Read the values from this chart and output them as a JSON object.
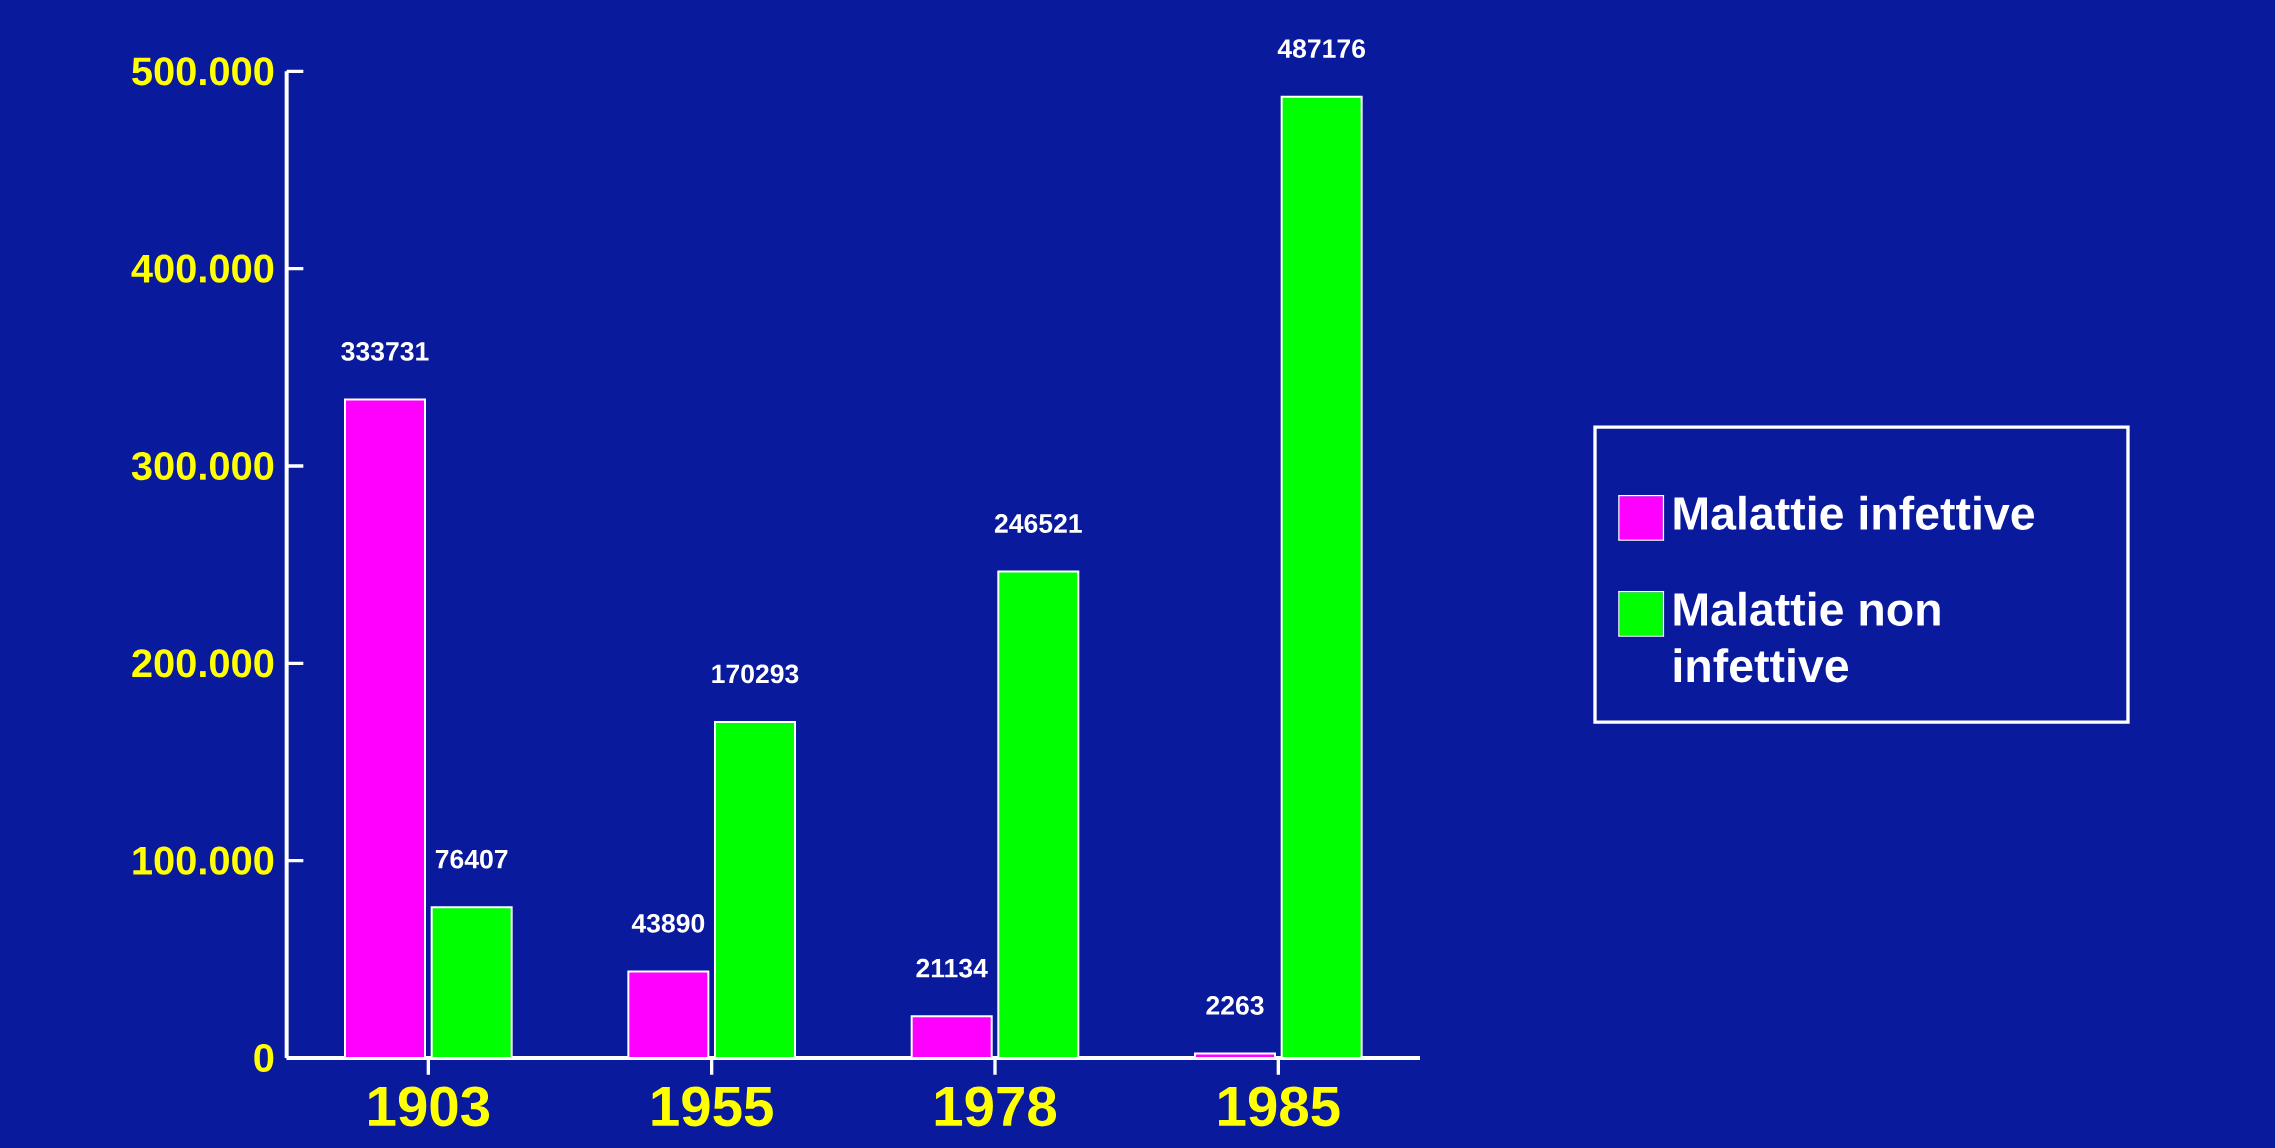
{
  "chart_data": {
    "type": "bar",
    "categories": [
      "1903",
      "1955",
      "1978",
      "1985"
    ],
    "series": [
      {
        "name": "Malattie infettive",
        "color": "#ff00ff",
        "values": [
          333731,
          43890,
          21134,
          2263
        ]
      },
      {
        "name": "Malattie non infettive",
        "color": "#00ff00",
        "values": [
          76407,
          170293,
          246521,
          487176
        ]
      }
    ],
    "ylim": [
      0,
      500000
    ],
    "yticks": [
      {
        "value": 0,
        "label": "0"
      },
      {
        "value": 100000,
        "label": "100.000"
      },
      {
        "value": 200000,
        "label": "200.000"
      },
      {
        "value": 300000,
        "label": "300.000"
      },
      {
        "value": 400000,
        "label": "400.000"
      },
      {
        "value": 500000,
        "label": "500.000"
      }
    ],
    "data_labels": true,
    "legend": "right",
    "grid": false
  }
}
